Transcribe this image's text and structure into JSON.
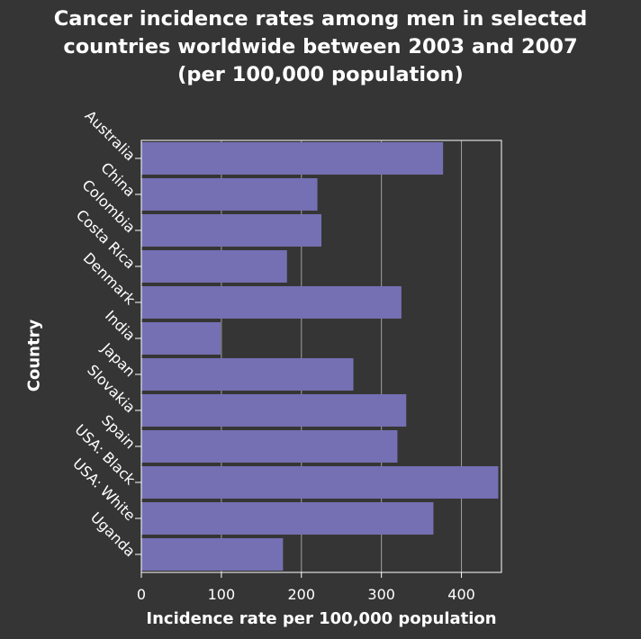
{
  "chart_data": {
    "type": "bar",
    "orientation": "horizontal",
    "title_lines": [
      "Cancer incidence rates among men in selected",
      "countries worldwide between 2003 and 2007",
      "(per 100,000 population)"
    ],
    "xlabel": "Incidence rate per 100,000 population",
    "ylabel": "Country",
    "categories": [
      "Australia",
      "China",
      "Colombia",
      "Costa Rica",
      "Denmark",
      "India",
      "Japan",
      "Slovakia",
      "Spain",
      "USA: Black",
      "USA: White",
      "Uganda"
    ],
    "values": [
      377,
      220,
      225,
      182,
      325,
      99,
      265,
      331,
      320,
      446,
      365,
      177
    ],
    "xlim": [
      0,
      450
    ],
    "xticks": [
      0,
      100,
      200,
      300,
      400
    ],
    "grid": "vertical",
    "colors": {
      "bar": "#7570b3",
      "background": "#353535",
      "grid": "#a0a0a0",
      "axis": "#ffffff",
      "text": "#ffffff"
    }
  }
}
